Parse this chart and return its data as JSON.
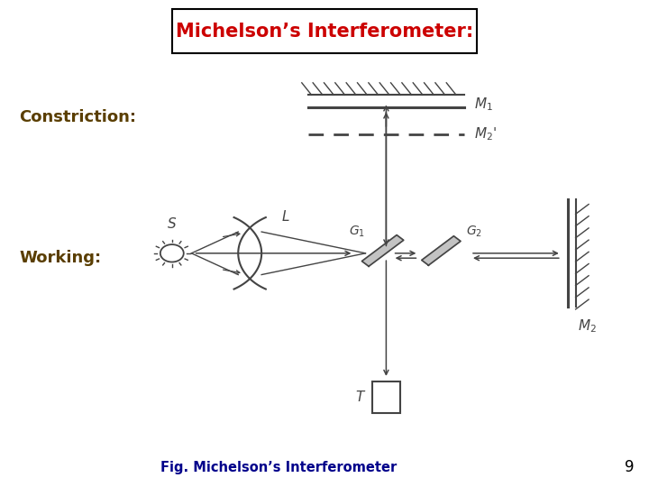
{
  "title": "Michelson’s Interferometer:",
  "title_color": "#cc0000",
  "title_box_color": "#000000",
  "constriction_label": "Constriction:",
  "working_label": "Working:",
  "label_color": "#5a3e00",
  "fig_caption": "Fig. Michelson’s Interferometer",
  "caption_color": "#00008b",
  "page_number": "9",
  "bg_color": "#ffffff",
  "dc": "#444444",
  "figsize": [
    7.2,
    5.4
  ],
  "dpi": 100
}
